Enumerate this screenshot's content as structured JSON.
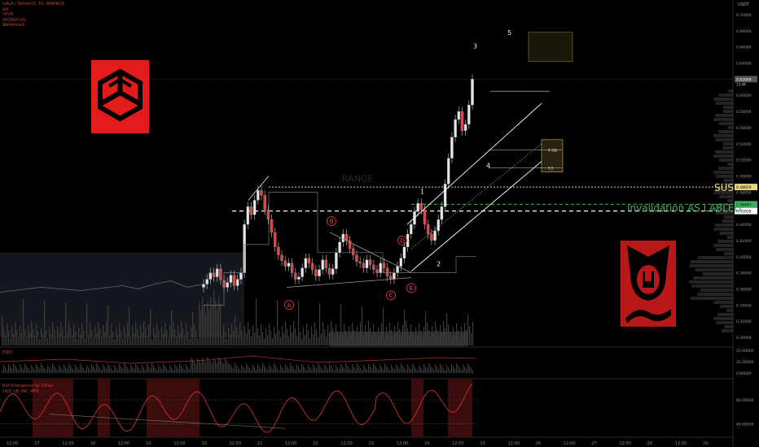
{
  "header": {
    "symbol_line": "GALA / TetherUS, 1h, BINANCE",
    "indicators": [
      "Vol",
      "VPVR",
      "SPCEKH VO",
      "Watermark"
    ]
  },
  "panes": {
    "osc_label": "EWO",
    "rsi_label": "RSI Divergence by XXXer",
    "rsi_sublabel": "OUS_UB_INC_MF9"
  },
  "annotations": {
    "sus": "SUS",
    "invalidation": "Invalidation AS LABLED",
    "wave_numbers": [
      "1",
      "2",
      "3",
      "4",
      "5"
    ],
    "wave_letters": [
      "A",
      "B",
      "C",
      "D",
      "E"
    ],
    "ghost_text": "RANGE"
  },
  "price_labels": {
    "last": "0.62000",
    "last_sub": "13:49",
    "sus_level": "0.48629",
    "inval_level": "0.46487",
    "base_level": "0.45658",
    "fib_618": "0.382",
    "fib_05": "0.5"
  },
  "chart_data": {
    "type": "candlestick",
    "currency": "USDT",
    "yaxis_ticks": [
      "0.70000",
      "0.68000",
      "0.66000",
      "0.64000",
      "0.62000",
      "0.60000",
      "0.58000",
      "0.56000",
      "0.54000",
      "0.52000",
      "0.50000",
      "0.48000",
      "0.46000",
      "0.44000",
      "0.42000",
      "0.40000",
      "0.38000",
      "0.36000",
      "0.34000",
      "0.32000",
      "0.30000"
    ],
    "xaxis_ticks": [
      "12:00",
      "17",
      "12:00",
      "18",
      "12:00",
      "19",
      "12:00",
      "20",
      "12:00",
      "21",
      "12:00",
      "22",
      "12:00",
      "23",
      "12:00",
      "24",
      "12:00",
      "25",
      "12:00",
      "26",
      "12:00",
      "27",
      "12:00",
      "28",
      "12:00",
      "29",
      "12:00"
    ],
    "ylim": [
      0.29,
      0.71
    ],
    "closes": [
      0.366,
      0.372,
      0.38,
      0.375,
      0.385,
      0.371,
      0.362,
      0.368,
      0.377,
      0.364,
      0.372,
      0.38,
      0.44,
      0.462,
      0.452,
      0.47,
      0.482,
      0.476,
      0.458,
      0.446,
      0.43,
      0.412,
      0.402,
      0.395,
      0.388,
      0.392,
      0.38,
      0.372,
      0.375,
      0.386,
      0.398,
      0.392,
      0.384,
      0.376,
      0.384,
      0.396,
      0.386,
      0.378,
      0.385,
      0.405,
      0.418,
      0.428,
      0.42,
      0.41,
      0.402,
      0.394,
      0.392,
      0.386,
      0.396,
      0.39,
      0.384,
      0.38,
      0.392,
      0.386,
      0.376,
      0.372,
      0.38,
      0.388,
      0.398,
      0.412,
      0.428,
      0.44,
      0.456,
      0.466,
      0.458,
      0.44,
      0.428,
      0.42,
      0.432,
      0.446,
      0.462,
      0.49,
      0.522,
      0.548,
      0.57,
      0.58,
      0.556,
      0.564,
      0.588,
      0.62
    ],
    "volume_profile_levels": [
      "SUS 0.48629",
      "Invalidation 0.46487",
      "0.45658"
    ],
    "rsi_ticks": [
      "60.00000",
      "40.00000"
    ],
    "osc_ticks": [
      "50.00000",
      "25.00000",
      "0.00000"
    ]
  },
  "colors": {
    "up": "#26a69a",
    "down": "#cc3030",
    "candle_body": "#d84848",
    "logo_bg": "#e21b1b",
    "logo2_bg": "#b81818",
    "sus_line": "#e6d77e",
    "inval_line": "#3fae5b",
    "channel": "#ffffff",
    "fib_box": "#e0b040"
  }
}
